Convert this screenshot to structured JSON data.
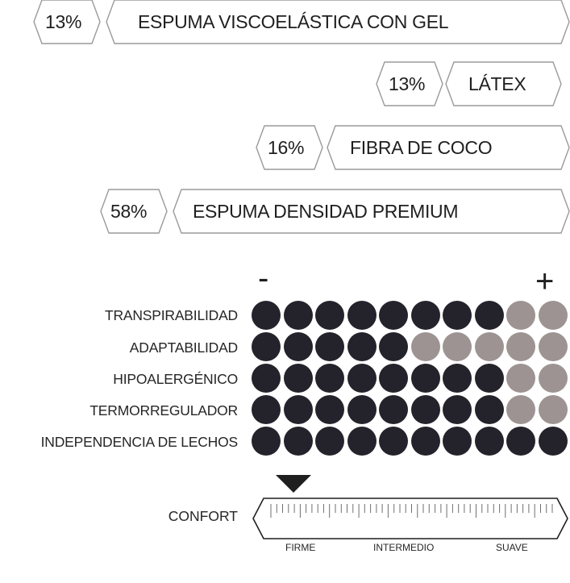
{
  "layers": [
    {
      "percent": "13%",
      "name": "ESPUMA VISCOELÁSTICA CON GEL"
    },
    {
      "percent": "13%",
      "name": "LÁTEX"
    },
    {
      "percent": "16%",
      "name": "FIBRA DE COCO"
    },
    {
      "percent": "58%",
      "name": "ESPUMA DENSIDAD PREMIUM"
    }
  ],
  "scale": {
    "min_label": "-",
    "max_label": "+",
    "max_level": 10
  },
  "attributes": [
    {
      "label": "TRANSPIRABILIDAD",
      "level": 8
    },
    {
      "label": "ADAPTABILIDAD",
      "level": 5
    },
    {
      "label": "HIPOALERGÉNICO",
      "level": 8
    },
    {
      "label": "TERMORREGULADOR",
      "level": 8
    },
    {
      "label": "INDEPENDENCIA DE LECHOS",
      "level": 10
    }
  ],
  "colors": {
    "filled_dot": "#24232b",
    "empty_dot": "#9e9393",
    "outline": "#9a9a9a"
  },
  "comfort": {
    "label": "CONFORT",
    "firm_label": "FIRME",
    "medium_label": "INTERMEDIO",
    "soft_label": "SUAVE",
    "indicator_position": 0.08,
    "indicator_icon": "triangle-down-icon"
  }
}
